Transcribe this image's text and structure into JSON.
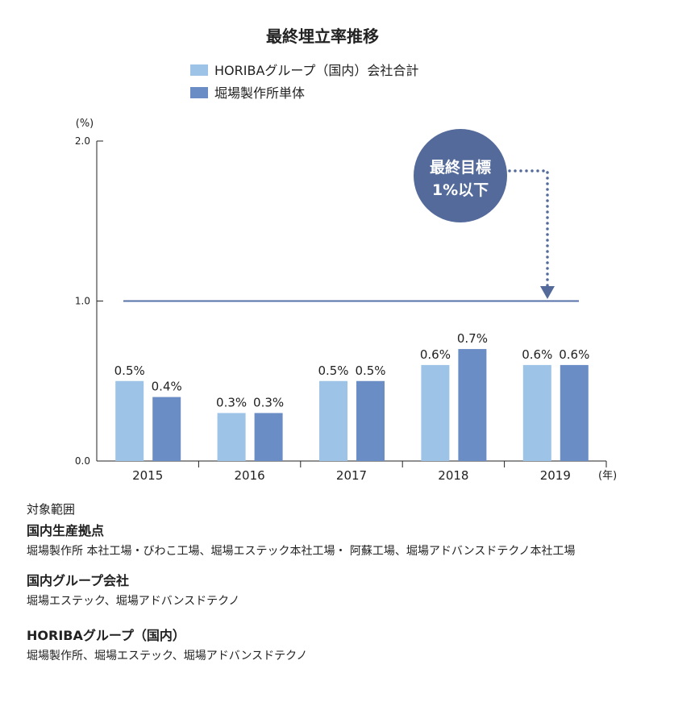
{
  "chart_data": {
    "type": "bar",
    "title": "最終埋立率推移",
    "ylabel": "(%)",
    "xlabel": "(年)",
    "ylim": [
      0,
      2.0
    ],
    "yticks": [
      "0.0",
      "1.0",
      "2.0"
    ],
    "grid": false,
    "legend_position": "top",
    "categories": [
      "2015",
      "2016",
      "2017",
      "2018",
      "2019"
    ],
    "series": [
      {
        "name": "HORIBAグループ（国内）会社合計",
        "color": "#9dc3e6",
        "values": [
          0.5,
          0.3,
          0.5,
          0.6,
          0.6
        ],
        "labels": [
          "0.5%",
          "0.3%",
          "0.5%",
          "0.6%",
          "0.6%"
        ]
      },
      {
        "name": "堀場製作所単体",
        "color": "#6b8dc6",
        "values": [
          0.4,
          0.3,
          0.5,
          0.7,
          0.6
        ],
        "labels": [
          "0.4%",
          "0.3%",
          "0.5%",
          "0.7%",
          "0.6%"
        ]
      }
    ],
    "target": {
      "value": 1.0,
      "label_line1": "最終目標",
      "label_line2": "1%以下",
      "color": "#536a9a"
    }
  },
  "notes": {
    "heading": "対象範囲",
    "sections": [
      {
        "title": "国内生産拠点",
        "text": "堀場製作所 本社工場・びわこ工場、堀場エステック本社工場・ 阿蘇工場、堀場アドバンスドテクノ本社工場"
      },
      {
        "title": "国内グループ会社",
        "text": "堀場エステック、堀場アドバンスドテクノ"
      },
      {
        "title": "HORIBAグループ（国内）",
        "text": "堀場製作所、堀場エステック、堀場アドバンスドテクノ"
      }
    ]
  }
}
